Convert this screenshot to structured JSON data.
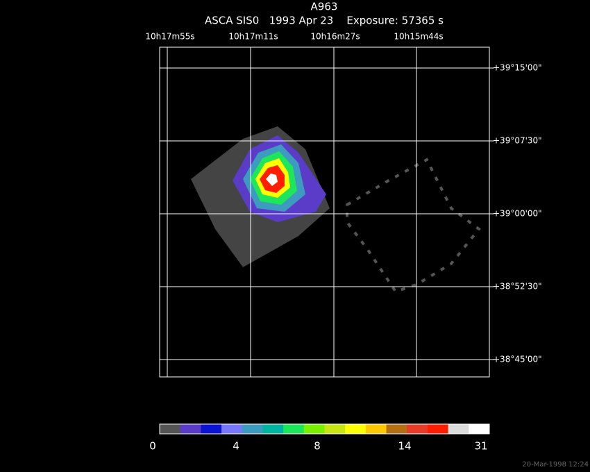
{
  "header": {
    "title": "A963",
    "subtitle": "ASCA SIS0   1993 Apr 23    Exposure: 57365 s"
  },
  "ra_labels": [
    "10h17m55s",
    "10h17m11s",
    "10h16m27s",
    "10h15m44s"
  ],
  "dec_labels": [
    "+39°15'00\"",
    "+39°07'30\"",
    "+39°00'00\"",
    "+38°52'30\"",
    "+38°45'00\""
  ],
  "colorbar": {
    "labels": [
      "0",
      "4",
      "8",
      "14",
      "31"
    ],
    "colors": [
      "#555555",
      "#5a3cc8",
      "#0a14d2",
      "#7878ff",
      "#3c9bbe",
      "#00b4a0",
      "#1ee65a",
      "#78f000",
      "#c8e614",
      "#ffff00",
      "#ffc800",
      "#b46e14",
      "#e63c28",
      "#ff1e00",
      "#dcdcdc",
      "#ffffff"
    ]
  },
  "timestamp": "20-Mar-1998 12:24"
}
